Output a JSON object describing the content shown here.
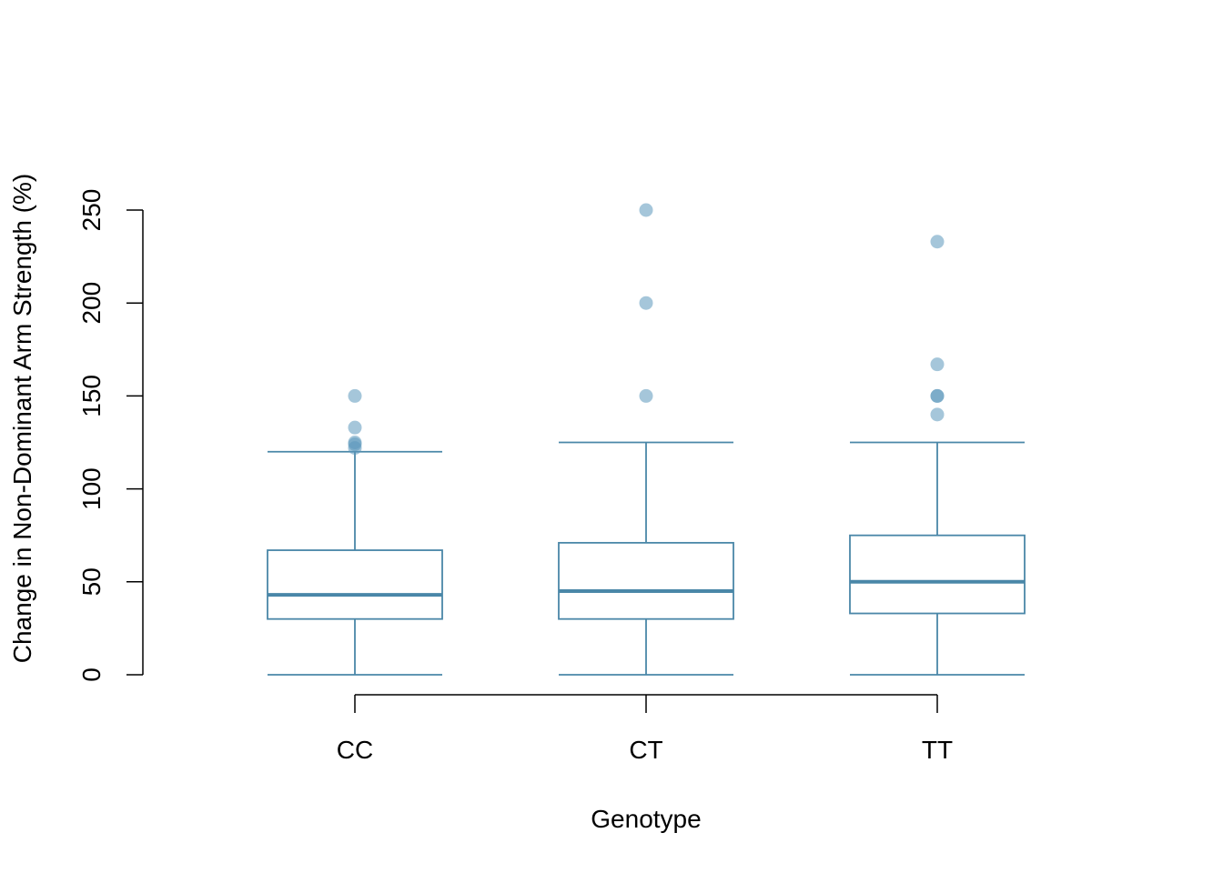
{
  "chart_data": {
    "type": "boxplot",
    "title": "",
    "xlabel": "Genotype",
    "ylabel": "Change in Non-Dominant Arm Strength (%)",
    "ylim": [
      0,
      250
    ],
    "y_ticks": [
      0,
      50,
      100,
      150,
      200,
      250
    ],
    "y_tick_labels": [
      "0",
      "50",
      "100",
      "150",
      "200",
      "250"
    ],
    "categories": [
      "CC",
      "CT",
      "TT"
    ],
    "boxes": [
      {
        "category": "CC",
        "whisker_low": 0,
        "q1": 30,
        "median": 43,
        "q3": 67,
        "whisker_high": 120,
        "outliers": [
          122,
          124,
          125,
          133,
          150
        ]
      },
      {
        "category": "CT",
        "whisker_low": 0,
        "q1": 30,
        "median": 45,
        "q3": 71,
        "whisker_high": 125,
        "outliers": [
          150,
          200,
          250
        ]
      },
      {
        "category": "TT",
        "whisker_low": 0,
        "q1": 33,
        "median": 50,
        "q3": 75,
        "whisker_high": 125,
        "outliers": [
          140,
          150,
          150,
          167,
          233
        ]
      }
    ],
    "colors": {
      "box": "#4a87a8",
      "outlier": "#5b97bb"
    },
    "grid": false,
    "legend": "none"
  }
}
